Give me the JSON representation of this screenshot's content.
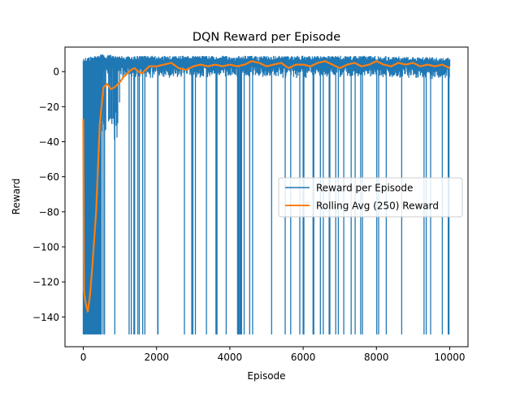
{
  "chart_data": {
    "type": "line",
    "title": "DQN Reward per Episode",
    "xlabel": "Episode",
    "ylabel": "Reward",
    "xlim": [
      -500,
      10500
    ],
    "ylim": [
      -157,
      14
    ],
    "xticks": [
      0,
      2000,
      4000,
      6000,
      8000,
      10000
    ],
    "yticks": [
      0,
      -20,
      -40,
      -60,
      -80,
      -100,
      -120,
      -140
    ],
    "xtick_labels": [
      "0",
      "2000",
      "4000",
      "6000",
      "8000",
      "10000"
    ],
    "ytick_labels": [
      "0",
      "−20",
      "−40",
      "−60",
      "−80",
      "−100",
      "−120",
      "−140"
    ],
    "grid": false,
    "legend_position": "center-right",
    "series": [
      {
        "name": "Reward per Episode",
        "color": "#1f77b4",
        "style": "dense-oscillating",
        "n_episodes": 10000,
        "upper_envelope": [
          [
            0,
            8
          ],
          [
            500,
            10
          ],
          [
            1000,
            9
          ],
          [
            2000,
            9
          ],
          [
            4000,
            9
          ],
          [
            6000,
            9
          ],
          [
            8000,
            9
          ],
          [
            10000,
            8
          ]
        ],
        "min_reward": -150,
        "dense_low_region_end": 500,
        "partial_dip_region": [
          [
            500,
            -40
          ],
          [
            600,
            -45
          ],
          [
            700,
            -30
          ],
          [
            800,
            -40
          ],
          [
            900,
            -42
          ],
          [
            1000,
            -22
          ]
        ]
      },
      {
        "name": "Rolling Avg (250) Reward",
        "color": "#ff7f0e",
        "x": [
          0,
          20,
          60,
          120,
          180,
          250,
          350,
          450,
          550,
          650,
          750,
          850,
          1000,
          1100,
          1200,
          1300,
          1400,
          1500,
          1600,
          1700,
          1800,
          2000,
          2200,
          2400,
          2600,
          2800,
          3000,
          3200,
          3400,
          3600,
          3800,
          4000,
          4200,
          4400,
          4600,
          4800,
          5000,
          5200,
          5400,
          5600,
          5800,
          6000,
          6200,
          6400,
          6600,
          6800,
          7000,
          7200,
          7400,
          7600,
          7800,
          8000,
          8200,
          8400,
          8600,
          8800,
          9000,
          9200,
          9400,
          9600,
          9800,
          10000
        ],
        "values": [
          -27,
          -125,
          -132,
          -137,
          -128,
          -110,
          -80,
          -30,
          -9,
          -7,
          -10,
          -9,
          -6,
          -3,
          -1,
          1,
          2,
          0,
          -1,
          1,
          3,
          3,
          4,
          5,
          2,
          1,
          3,
          4,
          3,
          4,
          3,
          4,
          3,
          4,
          6,
          5,
          3,
          4,
          5,
          2,
          4,
          4,
          3,
          5,
          6,
          4,
          2,
          4,
          5,
          3,
          4,
          6,
          4,
          3,
          5,
          4,
          5,
          3,
          4,
          3,
          4,
          2
        ]
      }
    ]
  }
}
